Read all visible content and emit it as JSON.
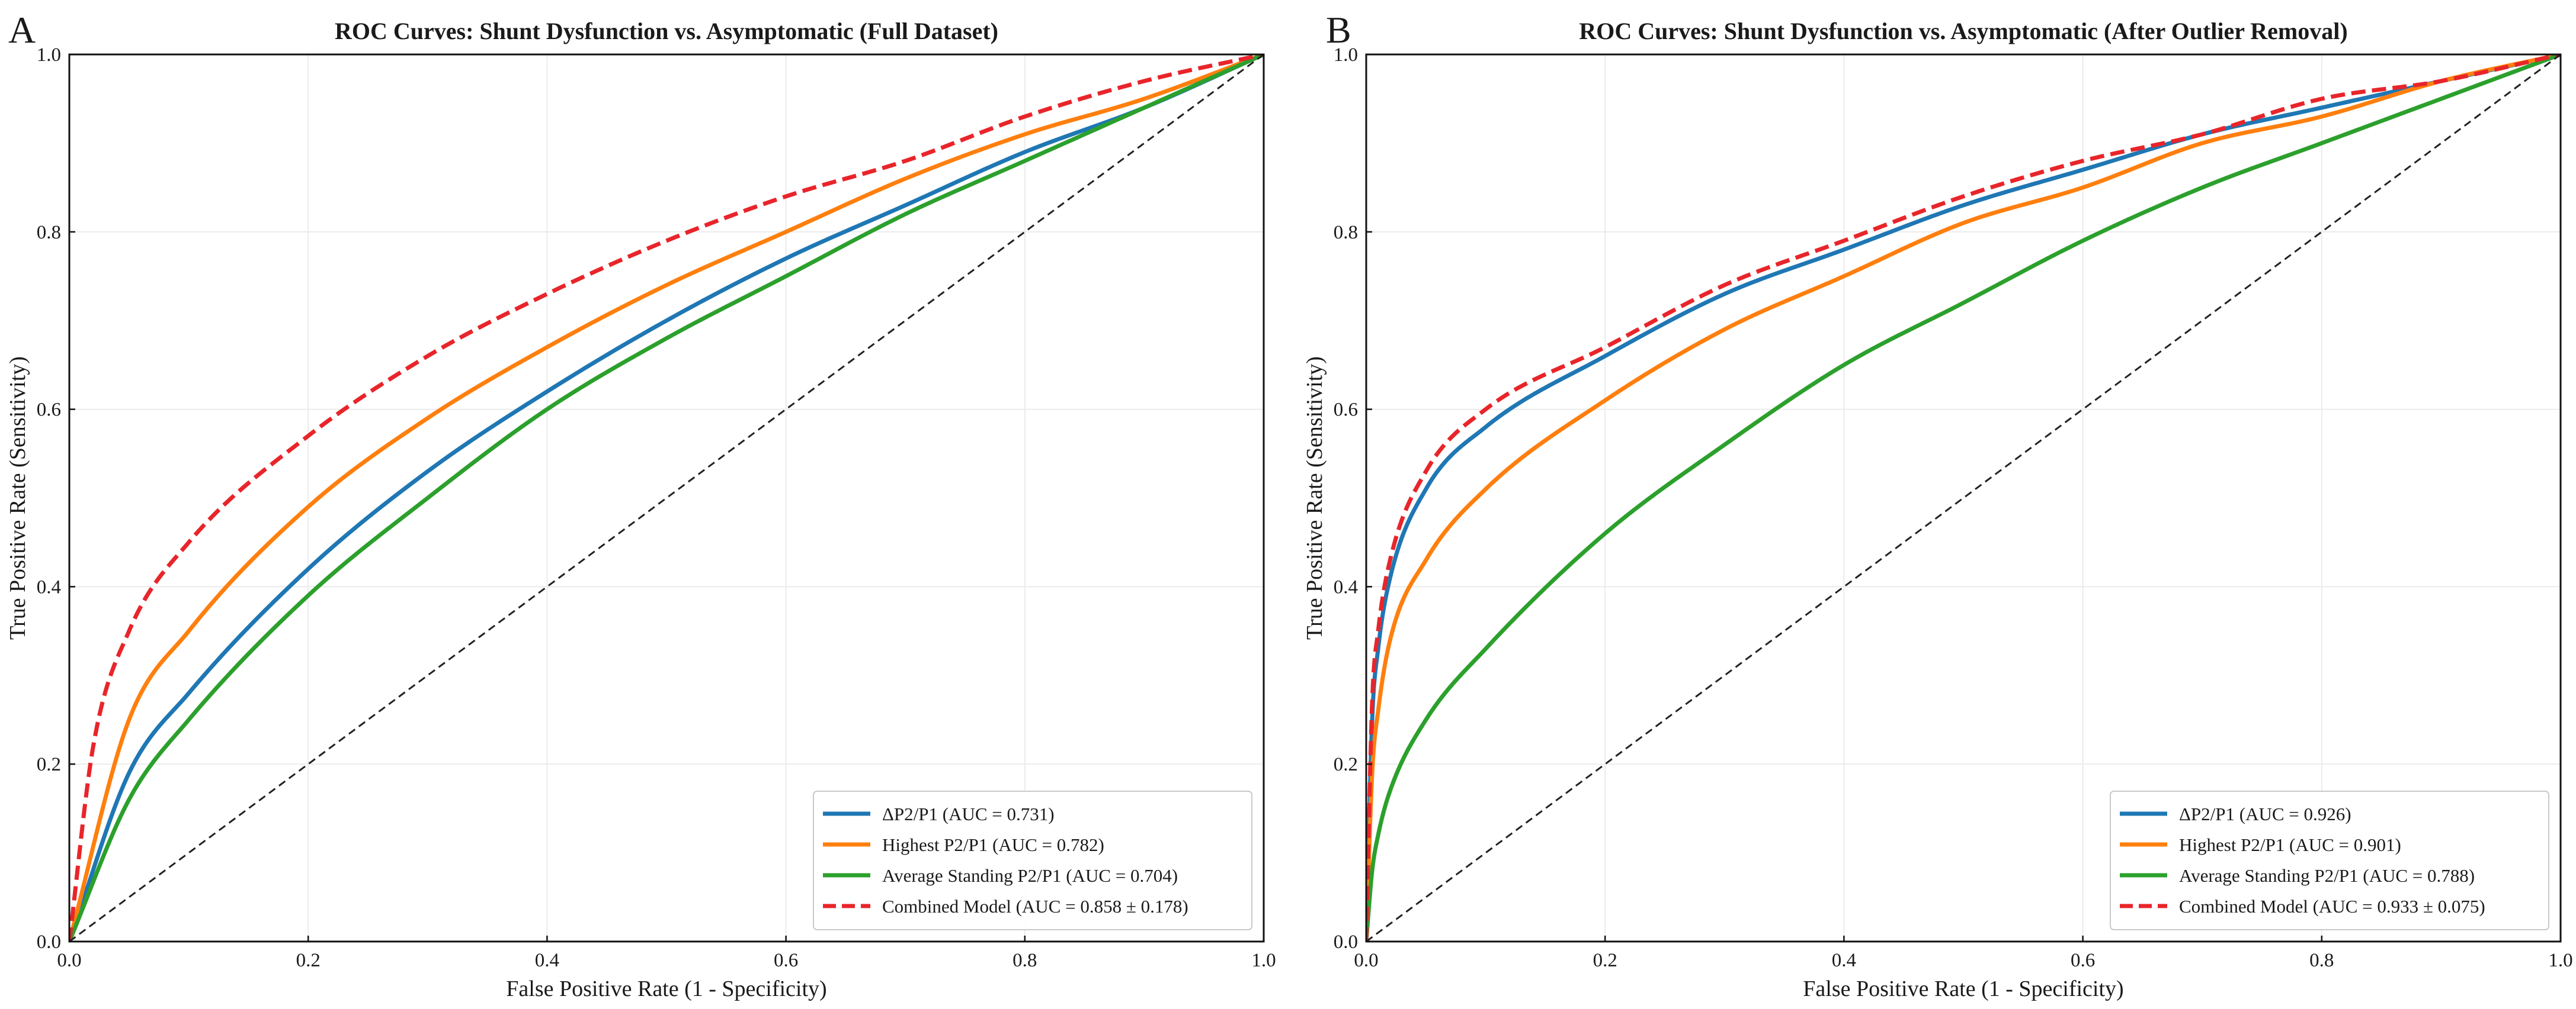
{
  "chart_data": [
    {
      "type": "line",
      "panel": "A",
      "title": "ROC Curves: Shunt Dysfunction vs. Asymptomatic (Full Dataset)",
      "xlabel": "False Positive Rate (1 - Specificity)",
      "ylabel": "True Positive Rate (Sensitivity)",
      "xlim": [
        0,
        1
      ],
      "ylim": [
        0,
        1
      ],
      "xticks": [
        "0.0",
        "0.2",
        "0.4",
        "0.6",
        "0.8",
        "1.0"
      ],
      "yticks": [
        "0.0",
        "0.2",
        "0.4",
        "0.6",
        "0.8",
        "1.0"
      ],
      "grid": true,
      "legend_position": "bottom-right",
      "series": [
        {
          "name": "ΔP2/P1 (AUC = 0.731)",
          "auc": 0.731,
          "color": "#1f77b4",
          "dash": "solid",
          "x": [
            0,
            0.05,
            0.1,
            0.2,
            0.3,
            0.4,
            0.5,
            0.6,
            0.7,
            0.8,
            0.9,
            1.0
          ],
          "y": [
            0,
            0.19,
            0.28,
            0.42,
            0.53,
            0.62,
            0.7,
            0.77,
            0.83,
            0.89,
            0.94,
            1.0
          ]
        },
        {
          "name": "Highest P2/P1 (AUC = 0.782)",
          "auc": 0.782,
          "color": "#ff7f0e",
          "dash": "solid",
          "x": [
            0,
            0.05,
            0.1,
            0.2,
            0.3,
            0.4,
            0.5,
            0.6,
            0.7,
            0.8,
            0.9,
            1.0
          ],
          "y": [
            0,
            0.25,
            0.35,
            0.49,
            0.59,
            0.67,
            0.74,
            0.8,
            0.86,
            0.91,
            0.95,
            1.0
          ]
        },
        {
          "name": "Average Standing P2/P1 (AUC = 0.704)",
          "auc": 0.704,
          "color": "#2ca02c",
          "dash": "solid",
          "x": [
            0,
            0.05,
            0.1,
            0.2,
            0.3,
            0.4,
            0.5,
            0.6,
            0.7,
            0.8,
            0.9,
            1.0
          ],
          "y": [
            0,
            0.16,
            0.25,
            0.39,
            0.5,
            0.6,
            0.68,
            0.75,
            0.82,
            0.88,
            0.94,
            1.0
          ]
        },
        {
          "name": "Combined Model (AUC = 0.858 ± 0.178)",
          "auc": 0.858,
          "color": "#e8252a",
          "dash": "dashed",
          "x": [
            0,
            0.02,
            0.05,
            0.1,
            0.2,
            0.3,
            0.4,
            0.5,
            0.6,
            0.7,
            0.8,
            0.9,
            1.0
          ],
          "y": [
            0,
            0.22,
            0.35,
            0.45,
            0.57,
            0.66,
            0.73,
            0.79,
            0.84,
            0.88,
            0.93,
            0.97,
            1.0
          ]
        },
        {
          "name": "",
          "color": "#222222",
          "dash": "reference",
          "x": [
            0,
            1
          ],
          "y": [
            0,
            1
          ]
        }
      ]
    },
    {
      "type": "line",
      "panel": "B",
      "title": "ROC Curves: Shunt Dysfunction vs. Asymptomatic (After Outlier Removal)",
      "xlabel": "False Positive Rate (1 - Specificity)",
      "ylabel": "True Positive Rate (Sensitivity)",
      "xlim": [
        0,
        1
      ],
      "ylim": [
        0,
        1
      ],
      "xticks": [
        "0.0",
        "0.2",
        "0.4",
        "0.6",
        "0.8",
        "1.0"
      ],
      "yticks": [
        "0.0",
        "0.2",
        "0.4",
        "0.6",
        "0.8",
        "1.0"
      ],
      "grid": true,
      "legend_position": "bottom-right",
      "series": [
        {
          "name": "ΔP2/P1 (AUC = 0.926)",
          "auc": 0.926,
          "color": "#1f77b4",
          "dash": "solid",
          "x": [
            0,
            0.005,
            0.01,
            0.02,
            0.05,
            0.1,
            0.2,
            0.3,
            0.4,
            0.5,
            0.6,
            0.7,
            0.8,
            0.9,
            1.0
          ],
          "y": [
            0,
            0.25,
            0.33,
            0.41,
            0.51,
            0.58,
            0.66,
            0.73,
            0.78,
            0.83,
            0.87,
            0.91,
            0.94,
            0.97,
            1.0
          ]
        },
        {
          "name": "Highest P2/P1 (AUC = 0.901)",
          "auc": 0.901,
          "color": "#ff7f0e",
          "dash": "solid",
          "x": [
            0,
            0.005,
            0.01,
            0.02,
            0.05,
            0.1,
            0.2,
            0.3,
            0.4,
            0.5,
            0.6,
            0.7,
            0.8,
            0.9,
            1.0
          ],
          "y": [
            0,
            0.19,
            0.26,
            0.34,
            0.43,
            0.51,
            0.61,
            0.69,
            0.75,
            0.81,
            0.85,
            0.9,
            0.93,
            0.97,
            1.0
          ]
        },
        {
          "name": "Average Standing P2/P1 (AUC = 0.788)",
          "auc": 0.788,
          "color": "#2ca02c",
          "dash": "solid",
          "x": [
            0,
            0.005,
            0.01,
            0.02,
            0.05,
            0.1,
            0.2,
            0.3,
            0.4,
            0.5,
            0.6,
            0.7,
            0.8,
            0.9,
            1.0
          ],
          "y": [
            0,
            0.08,
            0.12,
            0.17,
            0.25,
            0.33,
            0.46,
            0.56,
            0.65,
            0.72,
            0.79,
            0.85,
            0.9,
            0.95,
            1.0
          ]
        },
        {
          "name": "Combined Model (AUC = 0.933 ± 0.075)",
          "auc": 0.933,
          "color": "#e8252a",
          "dash": "dashed",
          "x": [
            0,
            0.005,
            0.01,
            0.02,
            0.05,
            0.1,
            0.2,
            0.3,
            0.4,
            0.5,
            0.6,
            0.7,
            0.8,
            0.9,
            1.0
          ],
          "y": [
            0,
            0.27,
            0.35,
            0.43,
            0.53,
            0.6,
            0.67,
            0.74,
            0.79,
            0.84,
            0.88,
            0.91,
            0.95,
            0.97,
            1.0
          ]
        },
        {
          "name": "",
          "color": "#222222",
          "dash": "reference",
          "x": [
            0,
            1
          ],
          "y": [
            0,
            1
          ]
        }
      ]
    }
  ]
}
